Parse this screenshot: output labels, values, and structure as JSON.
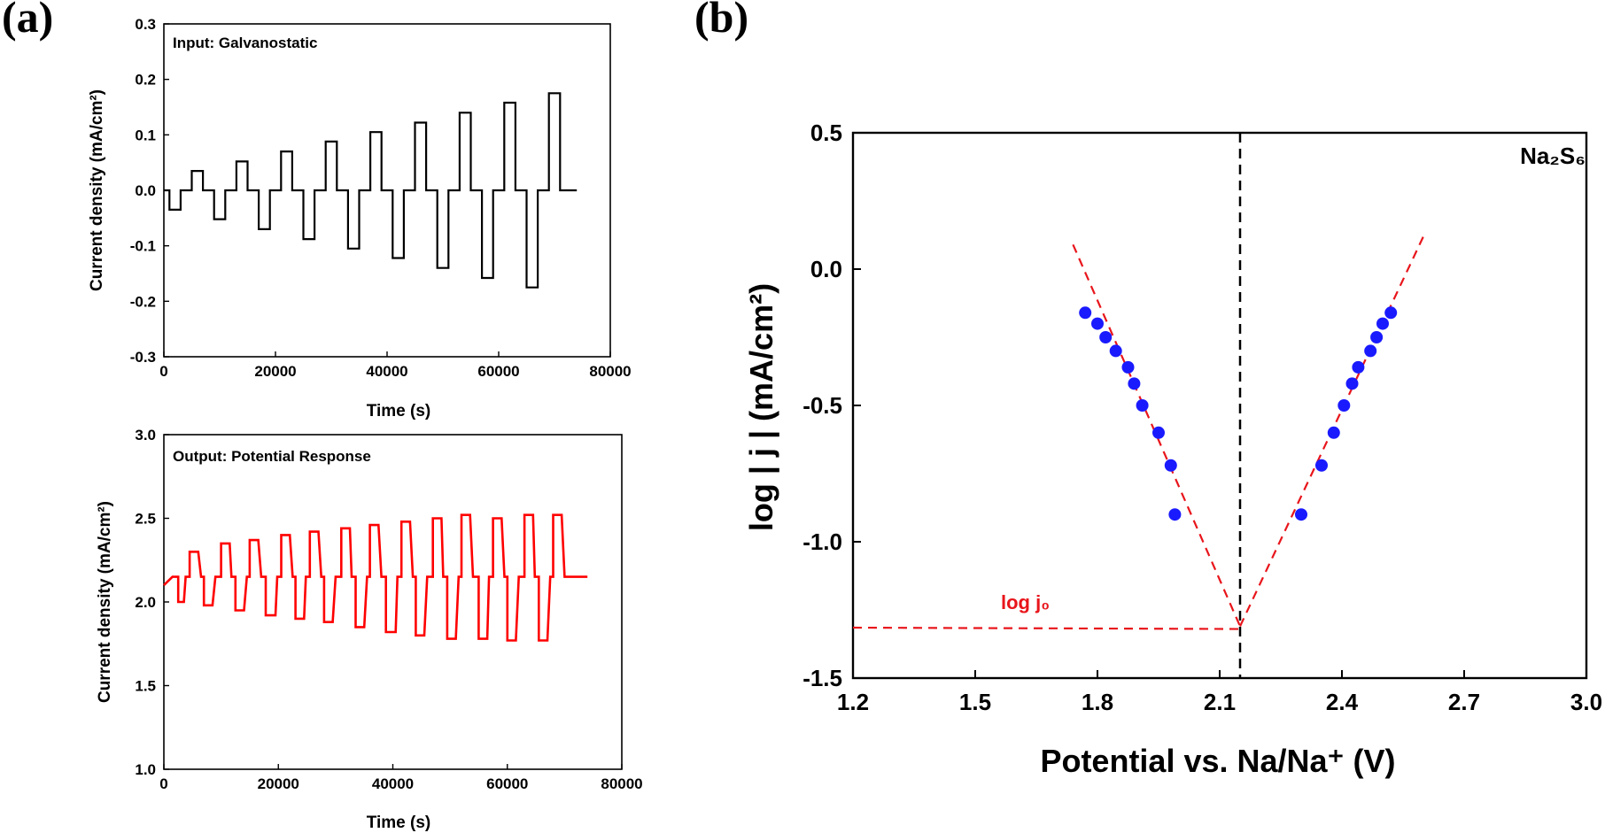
{
  "panels": {
    "a_label": "(a)",
    "b_label": "(b)"
  },
  "chart_data": [
    {
      "id": "a_top",
      "type": "line",
      "annotation": "Input: Galvanostatic",
      "xlabel": "Time (s)",
      "ylabel": "Current density (mA/cm²)",
      "xlim": [
        0,
        80000
      ],
      "ylim": [
        -0.3,
        0.3
      ],
      "xticks": [
        0,
        20000,
        40000,
        60000,
        80000
      ],
      "yticks": [
        -0.3,
        -0.2,
        -0.1,
        0.0,
        0.1,
        0.2,
        0.3
      ],
      "xtick_labels": [
        "0",
        "20000",
        "40000",
        "60000",
        "80000"
      ],
      "ytick_labels": [
        "-0.3",
        "-0.2",
        "-0.1",
        "0.0",
        "0.1",
        "0.2",
        "0.3"
      ],
      "series": [
        {
          "color": "#000000",
          "x": [
            0,
            1000,
            1000,
            3000,
            3000,
            5000,
            5000,
            7000,
            7000,
            9000,
            9000,
            11000,
            11000,
            13000,
            13000,
            15000,
            15000,
            17000,
            17000,
            19000,
            19000,
            21000,
            21000,
            23000,
            23000,
            25000,
            25000,
            27000,
            27000,
            29000,
            29000,
            31000,
            31000,
            33000,
            33000,
            35000,
            35000,
            37000,
            37000,
            39000,
            39000,
            41000,
            41000,
            43000,
            43000,
            45000,
            45000,
            47000,
            47000,
            49000,
            49000,
            51000,
            51000,
            53000,
            53000,
            55000,
            55000,
            57000,
            57000,
            59000,
            59000,
            61000,
            61000,
            63000,
            63000,
            65000,
            65000,
            67000,
            67000,
            69000,
            69000,
            71000,
            71000,
            74000
          ],
          "y": [
            0,
            0,
            -0.035,
            -0.035,
            0,
            0,
            0.035,
            0.035,
            0,
            0,
            -0.052,
            -0.052,
            0,
            0,
            0.052,
            0.052,
            0,
            0,
            -0.07,
            -0.07,
            0,
            0,
            0.07,
            0.07,
            0,
            0,
            -0.088,
            -0.088,
            0,
            0,
            0.088,
            0.088,
            0,
            0,
            -0.105,
            -0.105,
            0,
            0,
            0.105,
            0.105,
            0,
            0,
            -0.122,
            -0.122,
            0,
            0,
            0.122,
            0.122,
            0,
            0,
            -0.14,
            -0.14,
            0,
            0,
            0.14,
            0.14,
            0,
            0,
            -0.158,
            -0.158,
            0,
            0,
            0.158,
            0.158,
            0,
            0,
            -0.175,
            -0.175,
            0,
            0,
            0.175,
            0.175,
            0,
            0
          ]
        }
      ]
    },
    {
      "id": "a_bottom",
      "type": "line",
      "annotation": "Output: Potential Response",
      "xlabel": "Time (s)",
      "ylabel": "Current density (mA/cm²)",
      "xlim": [
        0,
        80000
      ],
      "ylim": [
        1.0,
        3.0
      ],
      "xticks": [
        0,
        20000,
        40000,
        60000,
        80000
      ],
      "yticks": [
        1.0,
        1.5,
        2.0,
        2.5,
        3.0
      ],
      "xtick_labels": [
        "0",
        "20000",
        "40000",
        "60000",
        "80000"
      ],
      "ytick_labels": [
        "1.0",
        "1.5",
        "2.0",
        "2.5",
        "3.0"
      ],
      "series": [
        {
          "color": "#ff0000",
          "x": [
            0,
            1500,
            2500,
            2500,
            3500,
            3800,
            4500,
            4500,
            6000,
            6500,
            7000,
            7000,
            8500,
            9000,
            10000,
            10000,
            11500,
            11800,
            12500,
            12500,
            14000,
            14500,
            15000,
            15000,
            16500,
            17000,
            17800,
            17800,
            19500,
            19800,
            20500,
            20500,
            22000,
            22500,
            23000,
            23000,
            24500,
            24800,
            25500,
            25500,
            27000,
            27500,
            28000,
            28000,
            29500,
            30000,
            31000,
            31000,
            32500,
            32800,
            33500,
            33500,
            35000,
            35500,
            36000,
            36000,
            37500,
            38000,
            38800,
            38800,
            40500,
            40800,
            41500,
            41500,
            43000,
            43500,
            44000,
            44000,
            45500,
            46000,
            47000,
            47000,
            48500,
            48800,
            49500,
            49500,
            51000,
            51500,
            52000,
            52000,
            53500,
            54000,
            55000,
            55000,
            56500,
            56800,
            57500,
            57500,
            59000,
            59500,
            60000,
            60000,
            61500,
            62000,
            63000,
            63000,
            64500,
            64800,
            65500,
            65500,
            67000,
            67500,
            68000,
            68000,
            69500,
            70000,
            71000,
            71000,
            72500,
            73000,
            74000
          ],
          "y": [
            2.1,
            2.15,
            2.15,
            2.0,
            2.0,
            2.15,
            2.15,
            2.3,
            2.3,
            2.15,
            2.15,
            1.98,
            1.98,
            2.15,
            2.15,
            2.35,
            2.35,
            2.15,
            2.15,
            1.95,
            1.95,
            2.15,
            2.15,
            2.37,
            2.37,
            2.15,
            2.15,
            1.92,
            1.92,
            2.15,
            2.15,
            2.4,
            2.4,
            2.15,
            2.15,
            1.9,
            1.9,
            2.15,
            2.15,
            2.42,
            2.42,
            2.15,
            2.15,
            1.88,
            1.88,
            2.15,
            2.15,
            2.44,
            2.44,
            2.15,
            2.15,
            1.85,
            1.85,
            2.15,
            2.15,
            2.46,
            2.46,
            2.15,
            2.15,
            1.82,
            1.82,
            2.15,
            2.15,
            2.48,
            2.48,
            2.15,
            2.15,
            1.8,
            1.8,
            2.15,
            2.15,
            2.5,
            2.5,
            2.15,
            2.15,
            1.78,
            1.78,
            2.15,
            2.15,
            2.52,
            2.52,
            2.15,
            2.15,
            1.78,
            1.78,
            2.15,
            2.15,
            2.5,
            2.5,
            2.15,
            2.15,
            1.77,
            1.77,
            2.15,
            2.15,
            2.52,
            2.52,
            2.15,
            2.15,
            1.77,
            1.77,
            2.15,
            2.15,
            2.52,
            2.52,
            2.15,
            2.15,
            2.15,
            2.15,
            2.15,
            2.15
          ]
        }
      ]
    },
    {
      "id": "b",
      "type": "scatter",
      "annotation": "Na₂S₆",
      "annotation2": "log j₀",
      "xlabel": "Potential vs. Na/Na⁺ (V)",
      "ylabel": "log | j | (mA/cm²)",
      "xlim": [
        1.2,
        3.0
      ],
      "ylim": [
        -1.5,
        0.5
      ],
      "xticks": [
        1.2,
        1.5,
        1.8,
        2.1,
        2.4,
        2.7,
        3.0
      ],
      "yticks": [
        -1.5,
        -1.0,
        -0.5,
        0.0,
        0.5
      ],
      "xtick_labels": [
        "1.2",
        "1.5",
        "1.8",
        "2.1",
        "2.4",
        "2.7",
        "3.0"
      ],
      "ytick_labels": [
        "-1.5",
        "-1.0",
        "-0.5",
        "0.0",
        "0.5"
      ],
      "vline_x": 2.15,
      "points_color": "#1a1aff",
      "fit_color": "#e8151b",
      "cathodic": {
        "x": [
          1.77,
          1.8,
          1.82,
          1.845,
          1.875,
          1.89,
          1.91,
          1.95,
          1.98,
          1.99
        ],
        "y": [
          -0.16,
          -0.2,
          -0.25,
          -0.3,
          -0.36,
          -0.42,
          -0.5,
          -0.6,
          -0.72,
          -0.9
        ]
      },
      "anodic": {
        "x": [
          2.3,
          2.35,
          2.38,
          2.405,
          2.425,
          2.44,
          2.47,
          2.485,
          2.5,
          2.52
        ],
        "y": [
          -0.9,
          -0.72,
          -0.6,
          -0.5,
          -0.42,
          -0.36,
          -0.3,
          -0.25,
          -0.2,
          -0.16
        ]
      },
      "fit_lines": [
        {
          "x": [
            1.74,
            2.15
          ],
          "y": [
            0.09,
            -1.31
          ]
        },
        {
          "x": [
            2.15,
            2.6
          ],
          "y": [
            -1.31,
            0.12
          ]
        },
        {
          "x": [
            1.2,
            2.15
          ],
          "y": [
            -1.315,
            -1.32
          ]
        }
      ]
    }
  ]
}
